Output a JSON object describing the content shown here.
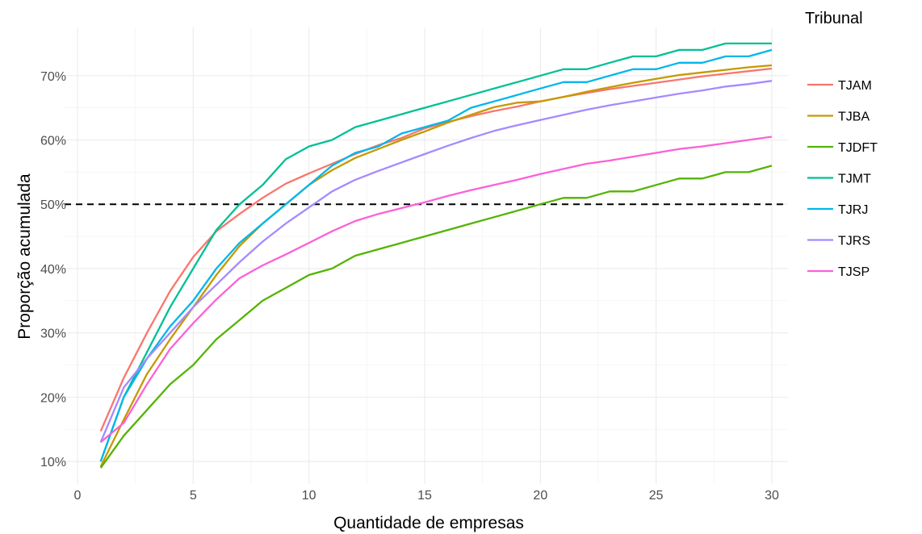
{
  "chart_data": {
    "type": "line",
    "title": "",
    "xlabel": "Quantidade de empresas",
    "ylabel": "Proporção acumulada",
    "xlim": [
      0,
      30
    ],
    "ylim": [
      0.065,
      0.775
    ],
    "xticks": [
      0,
      5,
      10,
      15,
      20,
      25,
      30
    ],
    "xtick_labels": [
      "0",
      "5",
      "10",
      "15",
      "20",
      "25",
      "30"
    ],
    "yticks": [
      0.1,
      0.2,
      0.3,
      0.4,
      0.5,
      0.6,
      0.7
    ],
    "ytick_labels": [
      "10%",
      "20%",
      "30%",
      "40%",
      "50%",
      "60%",
      "70%"
    ],
    "grid": true,
    "reference_line": {
      "y": 0.5,
      "style": "dashed",
      "color": "#000000"
    },
    "legend": {
      "title": "Tribunal",
      "position": "right"
    },
    "x": [
      1,
      2,
      3,
      4,
      5,
      6,
      7,
      8,
      9,
      10,
      11,
      12,
      13,
      14,
      15,
      16,
      17,
      18,
      19,
      20,
      21,
      22,
      23,
      24,
      25,
      26,
      27,
      28,
      29,
      30
    ],
    "series": [
      {
        "name": "TJAM",
        "color": "#F8766D",
        "values": [
          0.147,
          0.23,
          0.3,
          0.365,
          0.418,
          0.458,
          0.485,
          0.51,
          0.532,
          0.548,
          0.563,
          0.578,
          0.592,
          0.603,
          0.618,
          0.628,
          0.637,
          0.645,
          0.652,
          0.66,
          0.667,
          0.673,
          0.679,
          0.684,
          0.689,
          0.694,
          0.699,
          0.703,
          0.707,
          0.711
        ]
      },
      {
        "name": "TJBA",
        "color": "#C49A00",
        "values": [
          0.092,
          0.165,
          0.236,
          0.29,
          0.34,
          0.39,
          0.435,
          0.47,
          0.5,
          0.53,
          0.553,
          0.572,
          0.586,
          0.6,
          0.613,
          0.627,
          0.639,
          0.651,
          0.658,
          0.66,
          0.667,
          0.675,
          0.682,
          0.689,
          0.695,
          0.701,
          0.705,
          0.709,
          0.713,
          0.716
        ]
      },
      {
        "name": "TJDFT",
        "color": "#53B400",
        "values": [
          0.09,
          0.14,
          0.18,
          0.22,
          0.25,
          0.29,
          0.32,
          0.35,
          0.37,
          0.39,
          0.4,
          0.42,
          0.43,
          0.44,
          0.45,
          0.46,
          0.47,
          0.48,
          0.49,
          0.5,
          0.51,
          0.51,
          0.52,
          0.52,
          0.53,
          0.54,
          0.54,
          0.55,
          0.55,
          0.56
        ]
      },
      {
        "name": "TJMT",
        "color": "#00C094",
        "values": [
          0.1,
          0.2,
          0.27,
          0.34,
          0.4,
          0.46,
          0.5,
          0.53,
          0.57,
          0.59,
          0.6,
          0.62,
          0.63,
          0.64,
          0.65,
          0.66,
          0.67,
          0.68,
          0.69,
          0.7,
          0.71,
          0.71,
          0.72,
          0.73,
          0.73,
          0.74,
          0.74,
          0.75,
          0.75,
          0.75
        ]
      },
      {
        "name": "TJRJ",
        "color": "#00B6EB",
        "values": [
          0.1,
          0.2,
          0.26,
          0.31,
          0.35,
          0.4,
          0.44,
          0.47,
          0.5,
          0.53,
          0.56,
          0.58,
          0.59,
          0.61,
          0.62,
          0.63,
          0.65,
          0.66,
          0.67,
          0.68,
          0.69,
          0.69,
          0.7,
          0.71,
          0.71,
          0.72,
          0.72,
          0.73,
          0.73,
          0.74
        ]
      },
      {
        "name": "TJRS",
        "color": "#A58AFF",
        "values": [
          0.13,
          0.215,
          0.26,
          0.3,
          0.34,
          0.375,
          0.41,
          0.442,
          0.47,
          0.495,
          0.52,
          0.538,
          0.552,
          0.565,
          0.578,
          0.591,
          0.603,
          0.614,
          0.623,
          0.631,
          0.639,
          0.647,
          0.654,
          0.66,
          0.666,
          0.672,
          0.677,
          0.683,
          0.687,
          0.692
        ]
      },
      {
        "name": "TJSP",
        "color": "#FB61D7",
        "values": [
          0.13,
          0.16,
          0.22,
          0.275,
          0.315,
          0.352,
          0.385,
          0.405,
          0.422,
          0.44,
          0.458,
          0.474,
          0.485,
          0.494,
          0.503,
          0.513,
          0.522,
          0.53,
          0.538,
          0.547,
          0.555,
          0.563,
          0.568,
          0.574,
          0.58,
          0.586,
          0.59,
          0.595,
          0.6,
          0.605
        ]
      }
    ]
  }
}
